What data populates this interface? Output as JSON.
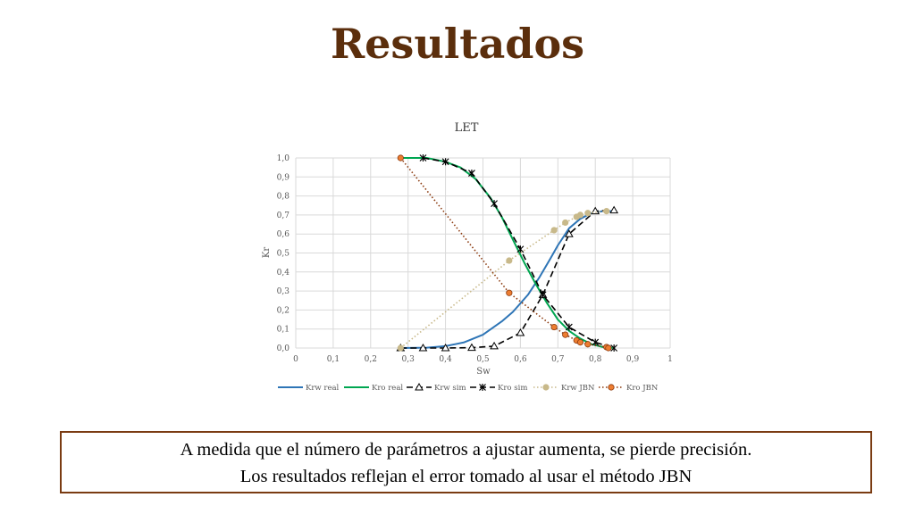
{
  "slide": {
    "title": "Resultados",
    "note_lines": [
      "A medida que el número de parámetros a ajustar aumenta, se pierde precisión.",
      "Los resultados reflejan el error tomado al usar el método JBN"
    ],
    "note_border_color": "#7a3b12",
    "title_color": "#5b2e0c"
  },
  "chart_data": {
    "type": "line",
    "title": "LET",
    "xlabel": "Sw",
    "ylabel": "Kr",
    "xlim": [
      0,
      1
    ],
    "ylim": [
      0,
      1
    ],
    "xticks": [
      "0",
      "0,1",
      "0,2",
      "0,3",
      "0,4",
      "0,5",
      "0,6",
      "0,7",
      "0,8",
      "0,9",
      "1"
    ],
    "yticks": [
      "0,0",
      "0,1",
      "0,2",
      "0,3",
      "0,4",
      "0,5",
      "0,6",
      "0,7",
      "0,8",
      "0,9",
      "1,0"
    ],
    "grid": true,
    "legend_position": "bottom",
    "series": [
      {
        "name": "Krw real",
        "color": "#2e75b6",
        "style": "solid",
        "marker": "none",
        "x": [
          0.28,
          0.35,
          0.4,
          0.45,
          0.5,
          0.55,
          0.58,
          0.62,
          0.65,
          0.68,
          0.7,
          0.73,
          0.76,
          0.79,
          0.82,
          0.85
        ],
        "y": [
          0.0,
          0.002,
          0.01,
          0.03,
          0.07,
          0.14,
          0.19,
          0.28,
          0.37,
          0.47,
          0.54,
          0.63,
          0.68,
          0.71,
          0.72,
          0.72
        ]
      },
      {
        "name": "Kro real",
        "color": "#00a651",
        "style": "solid",
        "marker": "none",
        "x": [
          0.28,
          0.35,
          0.4,
          0.44,
          0.48,
          0.52,
          0.55,
          0.58,
          0.61,
          0.64,
          0.67,
          0.7,
          0.73,
          0.76,
          0.79,
          0.82,
          0.85
        ],
        "y": [
          1.0,
          1.0,
          0.98,
          0.95,
          0.89,
          0.79,
          0.69,
          0.57,
          0.45,
          0.34,
          0.24,
          0.15,
          0.09,
          0.05,
          0.02,
          0.005,
          0.0
        ]
      },
      {
        "name": "Krw sim",
        "color": "#000000",
        "style": "dashed",
        "marker": "triangle",
        "x": [
          0.28,
          0.34,
          0.4,
          0.47,
          0.53,
          0.6,
          0.66,
          0.73,
          0.8,
          0.85
        ],
        "y": [
          0.0,
          0.0,
          0.0,
          0.002,
          0.01,
          0.08,
          0.28,
          0.6,
          0.72,
          0.725
        ]
      },
      {
        "name": "Kro sim",
        "color": "#000000",
        "style": "dashed",
        "marker": "star",
        "x": [
          0.34,
          0.4,
          0.47,
          0.53,
          0.6,
          0.66,
          0.73,
          0.8,
          0.85
        ],
        "y": [
          1.0,
          0.98,
          0.92,
          0.76,
          0.52,
          0.28,
          0.11,
          0.03,
          0.0
        ]
      },
      {
        "name": "Krw JBN",
        "color": "#c8b98a",
        "style": "dotted",
        "marker": "circle",
        "x": [
          0.28,
          0.57,
          0.69,
          0.72,
          0.75,
          0.76,
          0.78,
          0.83
        ],
        "y": [
          0.0,
          0.46,
          0.62,
          0.66,
          0.69,
          0.7,
          0.71,
          0.72
        ]
      },
      {
        "name": "Kro JBN",
        "color": "#8b3a0f",
        "marker_color": "#ed7d31",
        "style": "dotted",
        "marker": "circle",
        "x": [
          0.28,
          0.57,
          0.69,
          0.72,
          0.75,
          0.76,
          0.78,
          0.83,
          0.835
        ],
        "y": [
          1.0,
          0.29,
          0.11,
          0.07,
          0.04,
          0.03,
          0.02,
          0.005,
          0.0
        ]
      }
    ]
  }
}
